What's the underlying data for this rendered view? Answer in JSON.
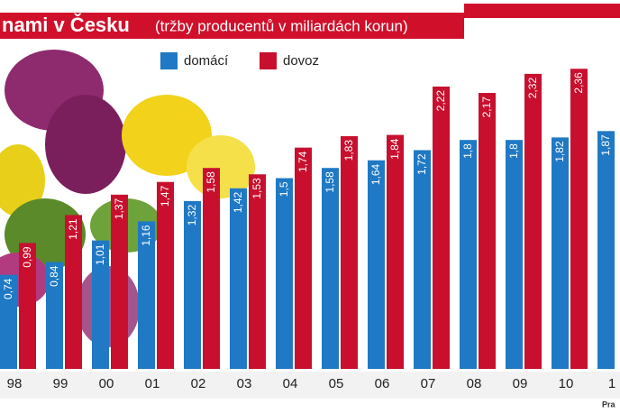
{
  "chart_data": {
    "type": "bar",
    "title": "nami v Česku",
    "subtitle": "(tržby producentů v miliardách korun)",
    "categories": [
      "98",
      "99",
      "00",
      "01",
      "02",
      "03",
      "04",
      "05",
      "06",
      "07",
      "08",
      "09",
      "10",
      "1"
    ],
    "series": [
      {
        "name": "domácí",
        "color": "#1f79c4",
        "values": [
          0.74,
          0.84,
          1.01,
          1.16,
          1.32,
          1.42,
          1.5,
          1.58,
          1.64,
          1.72,
          1.8,
          1.8,
          1.82,
          1.87
        ],
        "value_labels": [
          "0,74",
          "0,84",
          "1,01",
          "1,16",
          "1,32",
          "1,42",
          "1,5",
          "1,58",
          "1,64",
          "1,72",
          "1,8",
          "1,8",
          "1,82",
          "1,87"
        ]
      },
      {
        "name": "dovoz",
        "color": "#c8102e",
        "values": [
          0.99,
          1.21,
          1.37,
          1.47,
          1.58,
          1.53,
          1.74,
          1.83,
          1.84,
          2.22,
          2.17,
          2.32,
          2.36,
          null
        ],
        "value_labels": [
          "0,99",
          "1,21",
          "1,37",
          "1,47",
          "1,58",
          "1,53",
          "1,74",
          "1,83",
          "1,84",
          "2,22",
          "2,17",
          "2,32",
          "2,36",
          null
        ]
      }
    ],
    "source": "Pra"
  }
}
